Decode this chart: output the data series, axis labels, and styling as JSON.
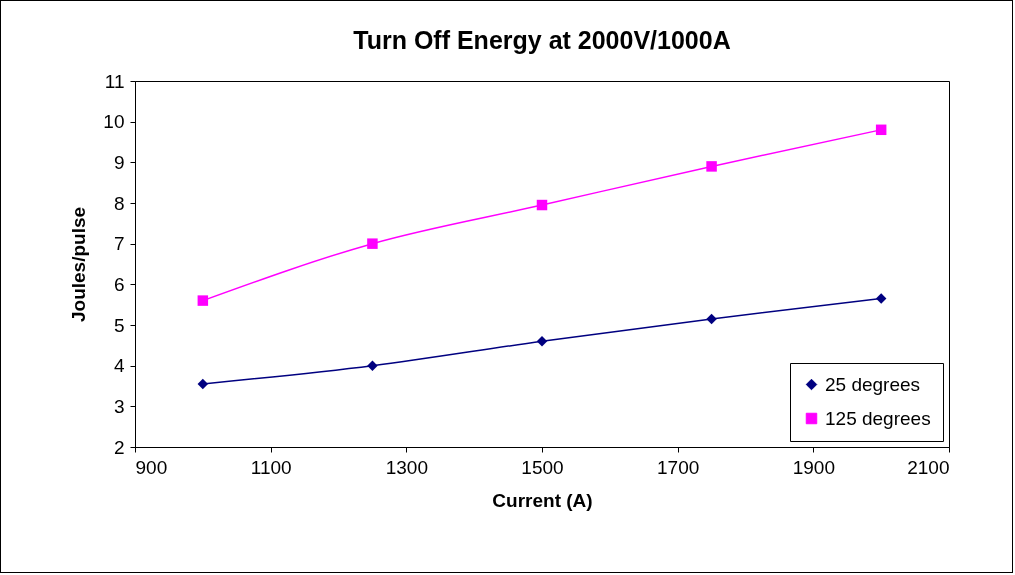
{
  "chart_data": {
    "type": "line",
    "title": "Turn Off Energy at 2000V/1000A",
    "xlabel": "Current (A)",
    "ylabel": "Joules/pulse",
    "x": [
      1000,
      1250,
      1500,
      1750,
      2000
    ],
    "series": [
      {
        "name": "25 degrees",
        "color": "#000080",
        "marker": "diamond",
        "values": [
          3.55,
          4.0,
          4.6,
          5.15,
          5.65
        ]
      },
      {
        "name": "125 degrees",
        "color": "#ff00ff",
        "marker": "square",
        "values": [
          5.6,
          7.0,
          7.95,
          8.9,
          9.8
        ]
      }
    ],
    "xlim": [
      900,
      2100
    ],
    "xticks": [
      900,
      1100,
      1300,
      1500,
      1700,
      1900,
      2100
    ],
    "ylim": [
      2,
      11
    ],
    "yticks": [
      2,
      3,
      4,
      5,
      6,
      7,
      8,
      9,
      10,
      11
    ],
    "grid": false,
    "legend": "bottom right"
  }
}
